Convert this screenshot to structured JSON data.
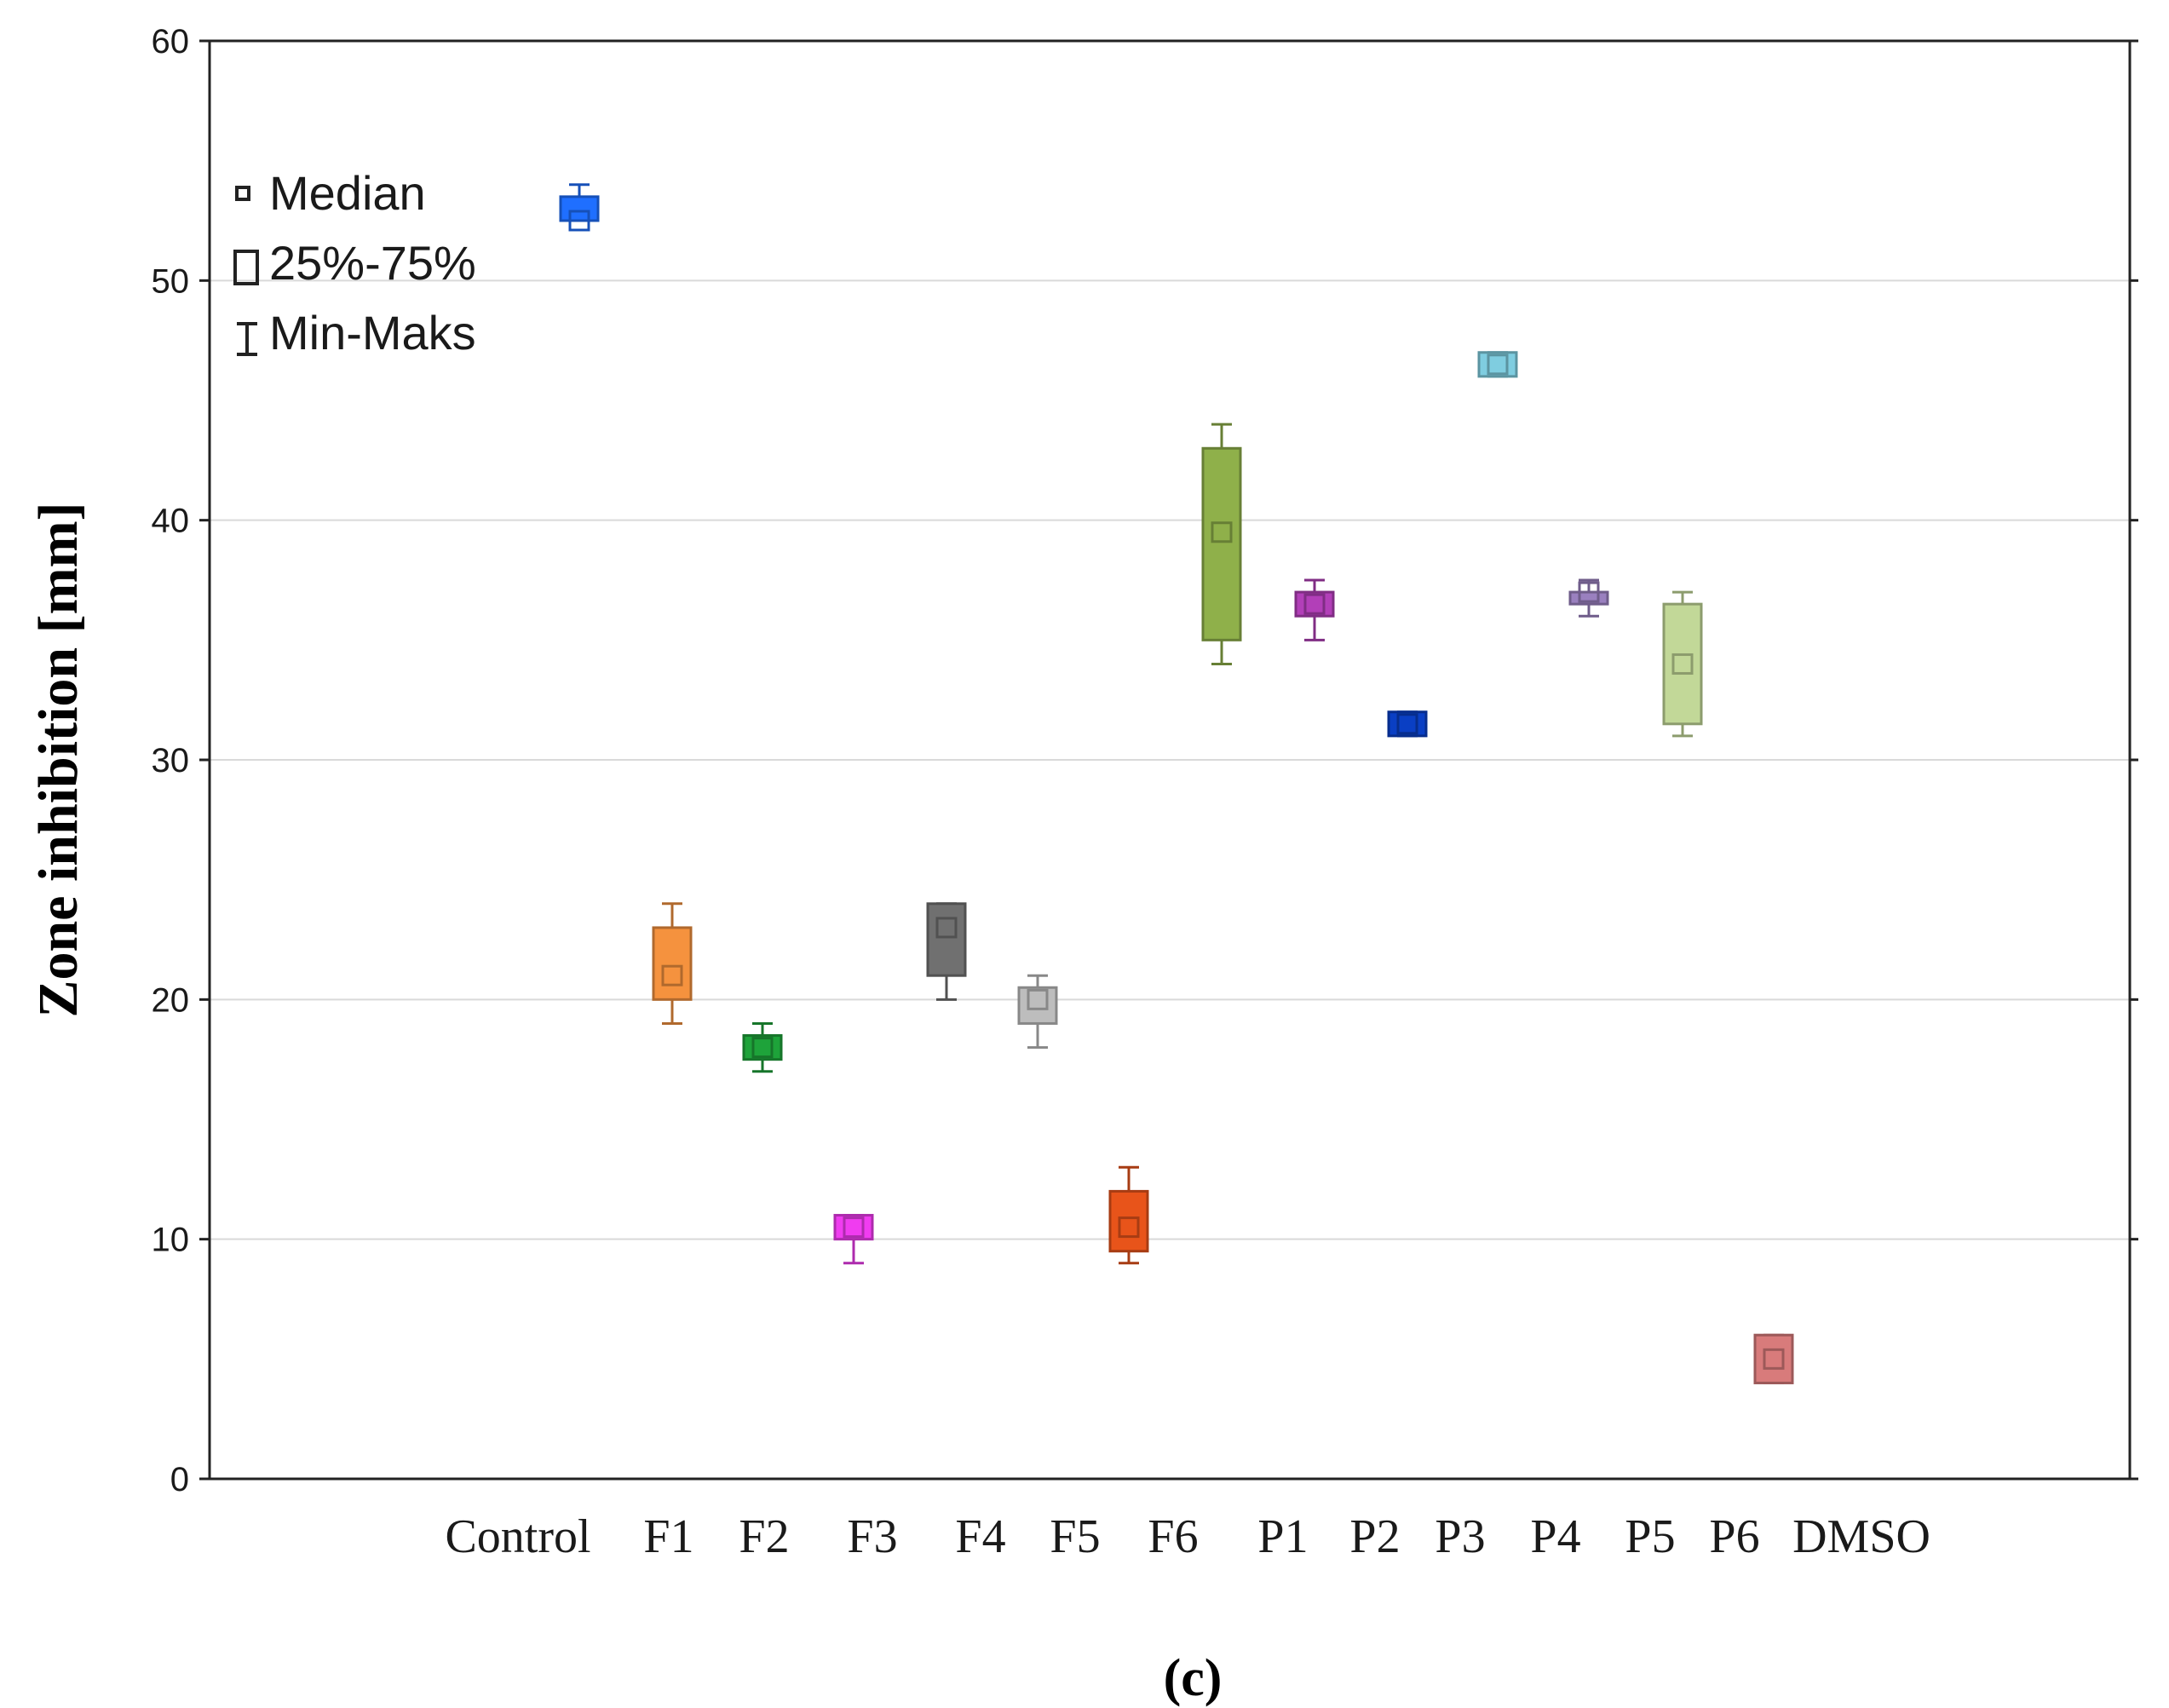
{
  "chart_data": {
    "type": "box",
    "title": "",
    "xlabel": "",
    "ylabel": "Zone inhibition [mm]",
    "ylim": [
      0,
      60
    ],
    "yticks": [
      0,
      10,
      20,
      30,
      40,
      50,
      60
    ],
    "ytick_labels": [
      "0",
      "10",
      "20",
      "30",
      "40",
      "50",
      "60"
    ],
    "grid": true,
    "legend": {
      "position": "top-left",
      "entries": [
        "Median",
        "25%-75%",
        "Min-Maks"
      ]
    },
    "caption": "(c)",
    "categories": [
      "Control",
      "F1",
      "F2",
      "F3",
      "F4",
      "F5",
      "F6",
      "P1",
      "P2",
      "P3",
      "P4",
      "P5",
      "P6",
      "DMSO"
    ],
    "series": [
      {
        "name": "Control",
        "min": 52.5,
        "q1": 52.5,
        "median": 52.5,
        "q3": 53.5,
        "max": 54,
        "color": "#1f6fff"
      },
      {
        "name": "F1",
        "min": 19,
        "q1": 20,
        "median": 21,
        "q3": 23,
        "max": 24,
        "color": "#f5923e"
      },
      {
        "name": "F2",
        "min": 17,
        "q1": 17.5,
        "median": 18,
        "q3": 18.5,
        "max": 19,
        "color": "#1ea33a"
      },
      {
        "name": "F3",
        "min": 9,
        "q1": 10,
        "median": 10.5,
        "q3": 11,
        "max": 11,
        "color": "#f03cf0"
      },
      {
        "name": "F4",
        "min": 20,
        "q1": 21,
        "median": 23,
        "q3": 24,
        "max": 24,
        "color": "#707070"
      },
      {
        "name": "F5",
        "min": 18,
        "q1": 19,
        "median": 20,
        "q3": 20.5,
        "max": 21,
        "color": "#bdbdbd"
      },
      {
        "name": "F6",
        "min": 9,
        "q1": 9.5,
        "median": 10.5,
        "q3": 12,
        "max": 13,
        "color": "#e8541a"
      },
      {
        "name": "P1",
        "min": 34,
        "q1": 35,
        "median": 39.5,
        "q3": 43,
        "max": 44,
        "color": "#8fb04a"
      },
      {
        "name": "P2",
        "min": 35,
        "q1": 36,
        "median": 36.5,
        "q3": 37,
        "max": 37.5,
        "color": "#b23fb8"
      },
      {
        "name": "P3",
        "min": 31,
        "q1": 31,
        "median": 31.5,
        "q3": 32,
        "max": 32,
        "color": "#0a3fc4"
      },
      {
        "name": "P4",
        "min": 46,
        "q1": 46,
        "median": 46.5,
        "q3": 47,
        "max": 47,
        "color": "#7fcde0"
      },
      {
        "name": "P5",
        "min": 36,
        "q1": 36.5,
        "median": 37,
        "q3": 37,
        "max": 37.5,
        "color": "#9a80bf"
      },
      {
        "name": "P6",
        "min": 31,
        "q1": 31.5,
        "median": 34,
        "q3": 36.5,
        "max": 37,
        "color": "#c2d898"
      },
      {
        "name": "DMSO",
        "min": 4,
        "q1": 4,
        "median": 5,
        "q3": 6,
        "max": 6,
        "color": "#d87b7b"
      }
    ]
  }
}
